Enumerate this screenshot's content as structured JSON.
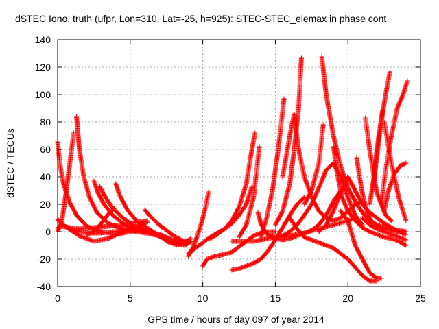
{
  "chart_data": {
    "type": "line",
    "title": "dSTEC Iono. truth (ufpr, Lon=310, Lat=-25, h=925): STEC-STEC_elemax in phase cont",
    "xlabel": "GPS time / hours of day 097 of year 2014",
    "ylabel": "dSTEC  / TECUs",
    "xlim": [
      0,
      25
    ],
    "ylim": [
      -40,
      140
    ],
    "x_ticks": [
      0,
      5,
      10,
      15,
      20,
      25
    ],
    "y_ticks": [
      -40,
      -20,
      0,
      20,
      40,
      60,
      80,
      100,
      120,
      140
    ],
    "x_tick_labels": [
      "0",
      "5",
      "10",
      "15",
      "20",
      "25"
    ],
    "y_tick_labels": [
      "-40",
      "-20",
      "0",
      "20",
      "40",
      "60",
      "80",
      "100",
      "120",
      "140"
    ],
    "grid": true,
    "marker": "+",
    "series_color": "#ff0000",
    "series": [
      {
        "x": [
          0.0,
          0.3,
          0.8,
          1.5,
          2.5,
          3.5,
          4.5,
          5.5,
          6.2
        ],
        "y": [
          3,
          4,
          3,
          2,
          3,
          4,
          5,
          7,
          8
        ]
      },
      {
        "x": [
          0.0,
          0.15,
          0.4,
          0.8,
          1.3,
          2.0,
          3.0,
          4.0,
          5.0,
          6.0
        ],
        "y": [
          66,
          50,
          35,
          22,
          12,
          4,
          0,
          -2,
          0,
          2
        ]
      },
      {
        "x": [
          0.0,
          0.5,
          1.5,
          2.5,
          3.5,
          4.3,
          5.0,
          5.7,
          6.2
        ],
        "y": [
          9,
          4,
          -3,
          -7,
          -5,
          -1,
          2,
          5,
          7
        ]
      },
      {
        "x": [
          0.0,
          0.3,
          0.6,
          0.9,
          1.1
        ],
        "y": [
          0,
          8,
          30,
          55,
          72
        ]
      },
      {
        "x": [
          1.3,
          1.5,
          1.8,
          2.2,
          2.7,
          3.5,
          4.5,
          5.5,
          6.5,
          7.3
        ],
        "y": [
          84,
          60,
          40,
          25,
          14,
          6,
          2,
          0,
          -2,
          -3
        ]
      },
      {
        "x": [
          0.5,
          0.9,
          1.5,
          2.2,
          3.0,
          3.8,
          4.5,
          5.3,
          6.0
        ],
        "y": [
          4,
          2,
          0,
          -1,
          -1,
          0,
          1,
          2,
          3
        ]
      },
      {
        "x": [
          2.5,
          2.8,
          3.2,
          3.8,
          4.5,
          5.2,
          6.0,
          7.0,
          8.0,
          8.8
        ],
        "y": [
          37,
          28,
          20,
          12,
          6,
          2,
          0,
          -2,
          -6,
          -9
        ]
      },
      {
        "x": [
          2.9,
          3.3,
          3.8,
          4.5,
          5.3,
          6.2,
          7.2,
          8.0,
          8.8,
          9.2
        ],
        "y": [
          33,
          25,
          17,
          10,
          4,
          0,
          -4,
          -9,
          -10,
          -7
        ]
      },
      {
        "x": [
          4.0,
          4.3,
          4.8,
          5.5,
          6.3,
          7.0,
          7.7,
          8.5,
          9.2
        ],
        "y": [
          35,
          26,
          16,
          7,
          2,
          -3,
          -8,
          -9,
          -5
        ]
      },
      {
        "x": [
          2.0,
          2.5,
          3.0,
          3.5,
          3.9
        ],
        "y": [
          -2,
          0,
          6,
          13,
          17
        ]
      },
      {
        "x": [
          6.0,
          6.5,
          7.0,
          7.5,
          8.0,
          8.5,
          9.0
        ],
        "y": [
          16,
          10,
          5,
          1,
          -3,
          -6,
          -8
        ]
      },
      {
        "x": [
          9.0,
          9.3,
          9.6,
          9.9,
          10.2,
          10.4
        ],
        "y": [
          -18,
          -12,
          -4,
          6,
          18,
          29
        ]
      },
      {
        "x": [
          9.0,
          9.5,
          10.0,
          10.5,
          11.0,
          11.5,
          12.0,
          12.5,
          13.0,
          13.4
        ],
        "y": [
          -16,
          -12,
          -8,
          -4,
          -1,
          2,
          6,
          12,
          20,
          33
        ]
      },
      {
        "x": [
          10.0,
          10.3,
          10.8,
          11.3,
          12.0,
          12.5,
          13.0,
          13.5,
          14.0,
          14.5,
          15.0
        ],
        "y": [
          -25,
          -20,
          -18,
          -17,
          -15,
          -11,
          -7,
          -3,
          -1,
          0,
          0
        ]
      },
      {
        "x": [
          10.5,
          11.0,
          11.5,
          12.0,
          12.5,
          13.0,
          13.3,
          13.6
        ],
        "y": [
          -5,
          -2,
          2,
          8,
          18,
          35,
          55,
          72
        ]
      },
      {
        "x": [
          12.0,
          12.5,
          13.0,
          13.5,
          14.0,
          14.5,
          15.0,
          15.5,
          16.0,
          16.5,
          17.0
        ],
        "y": [
          -28,
          -27,
          -25,
          -23,
          -20,
          -14,
          -6,
          3,
          12,
          20,
          25
        ]
      },
      {
        "x": [
          12.0,
          12.5,
          13.0,
          13.5,
          14.0,
          14.5,
          15.0,
          15.5,
          16.0,
          16.5,
          17.0,
          17.5,
          18.0,
          18.5,
          19.0,
          19.5,
          20.0
        ],
        "y": [
          -7,
          -7,
          -7,
          -7,
          -6,
          -5,
          -4,
          -4,
          -3,
          -2,
          -1,
          1,
          5,
          12,
          22,
          30,
          35
        ]
      },
      {
        "x": [
          12.5,
          13.0,
          13.5,
          13.9
        ],
        "y": [
          -4,
          5,
          25,
          62
        ]
      },
      {
        "x": [
          13.8,
          14.0,
          14.3,
          14.7,
          15.0,
          15.5,
          16.0,
          16.5,
          17.0,
          18.0,
          19.0,
          20.0,
          20.5
        ],
        "y": [
          14,
          6,
          0,
          -4,
          -5,
          -6,
          -5,
          -3,
          -1,
          2,
          5,
          8,
          10
        ]
      },
      {
        "x": [
          14.0,
          14.4,
          14.8,
          15.2,
          15.6
        ],
        "y": [
          -4,
          10,
          30,
          60,
          97
        ]
      },
      {
        "x": [
          14.5,
          15.0,
          15.5,
          16.0,
          16.5,
          17.0,
          17.5,
          18.0,
          18.5,
          19.0,
          19.5,
          20.0,
          20.5,
          21.0
        ],
        "y": [
          -3,
          -4,
          -3,
          0,
          5,
          12,
          20,
          32,
          45,
          50,
          40,
          25,
          12,
          5
        ]
      },
      {
        "x": [
          15.0,
          15.5,
          16.0,
          16.3,
          16.6,
          16.8
        ],
        "y": [
          5,
          15,
          35,
          60,
          90,
          127
        ]
      },
      {
        "x": [
          15.5,
          16.0,
          16.3,
          16.6,
          17.0,
          17.5,
          18.0,
          18.5,
          19.0,
          19.5,
          20.0,
          20.5,
          21.0
        ],
        "y": [
          40,
          70,
          86,
          60,
          40,
          25,
          15,
          10,
          8,
          10,
          15,
          20,
          22
        ]
      },
      {
        "x": [
          16.0,
          16.5,
          17.0,
          17.5,
          18.0,
          18.5,
          19.0,
          19.5,
          20.0,
          20.5,
          21.0,
          21.5,
          22.0
        ],
        "y": [
          10,
          2,
          -4,
          -6,
          -8,
          -10,
          -12,
          -16,
          -20,
          -26,
          -32,
          -36,
          -36
        ]
      },
      {
        "x": [
          17.0,
          17.5,
          18.0,
          18.3
        ],
        "y": [
          20,
          30,
          50,
          78
        ]
      },
      {
        "x": [
          18.2,
          18.5,
          19.0,
          19.5,
          20.0,
          20.5,
          21.0,
          21.5,
          22.0,
          22.5,
          23.0,
          23.5,
          24.0
        ],
        "y": [
          128,
          100,
          70,
          48,
          32,
          22,
          14,
          8,
          5,
          3,
          2,
          1,
          0
        ]
      },
      {
        "x": [
          18.0,
          18.5,
          19.0,
          19.5,
          20.0,
          20.5,
          21.0,
          21.5,
          22.0,
          22.5,
          23.0,
          23.5,
          24.0
        ],
        "y": [
          0,
          5,
          15,
          28,
          40,
          30,
          20,
          14,
          10,
          6,
          3,
          0,
          -2
        ]
      },
      {
        "x": [
          19.0,
          19.3,
          19.6,
          20.0,
          20.5,
          21.0,
          21.5,
          22.0,
          22.5,
          23.0,
          23.5,
          24.0
        ],
        "y": [
          62,
          40,
          25,
          15,
          8,
          3,
          0,
          -2,
          -4,
          -5,
          -7,
          -10
        ]
      },
      {
        "x": [
          19.5,
          20.0,
          20.5,
          21.0,
          21.5,
          22.0,
          22.3
        ],
        "y": [
          15,
          8,
          -10,
          -20,
          -30,
          -34,
          -34
        ]
      },
      {
        "x": [
          20.6,
          20.8,
          21.0,
          21.3,
          21.6,
          22.0,
          22.5,
          23.0,
          23.5,
          24.0
        ],
        "y": [
          54,
          40,
          28,
          15,
          8,
          4,
          2,
          1,
          0,
          0
        ]
      },
      {
        "x": [
          21.2,
          21.5,
          21.8,
          22.0,
          22.3,
          22.6,
          23.0
        ],
        "y": [
          83,
          60,
          40,
          28,
          20,
          12,
          8
        ]
      },
      {
        "x": [
          21.5,
          21.8,
          22.0,
          22.2,
          22.4
        ],
        "y": [
          20,
          40,
          60,
          75,
          89
        ]
      },
      {
        "x": [
          21.7,
          22.0,
          22.3,
          22.6,
          22.9
        ],
        "y": [
          30,
          55,
          80,
          100,
          117
        ]
      },
      {
        "x": [
          22.3,
          22.6,
          23.0,
          23.4,
          23.8,
          24.1
        ],
        "y": [
          20,
          45,
          70,
          90,
          100,
          110
        ]
      },
      {
        "x": [
          22.5,
          22.8,
          23.2,
          23.6,
          24.0
        ],
        "y": [
          15,
          30,
          42,
          48,
          50
        ]
      },
      {
        "x": [
          21.0,
          21.5,
          22.0,
          22.5,
          23.0,
          23.5,
          24.0
        ],
        "y": [
          10,
          5,
          2,
          0,
          -2,
          -4,
          -6
        ]
      },
      {
        "x": [
          22.5,
          23.0,
          23.5,
          24.0
        ],
        "y": [
          80,
          50,
          25,
          8
        ]
      }
    ]
  }
}
